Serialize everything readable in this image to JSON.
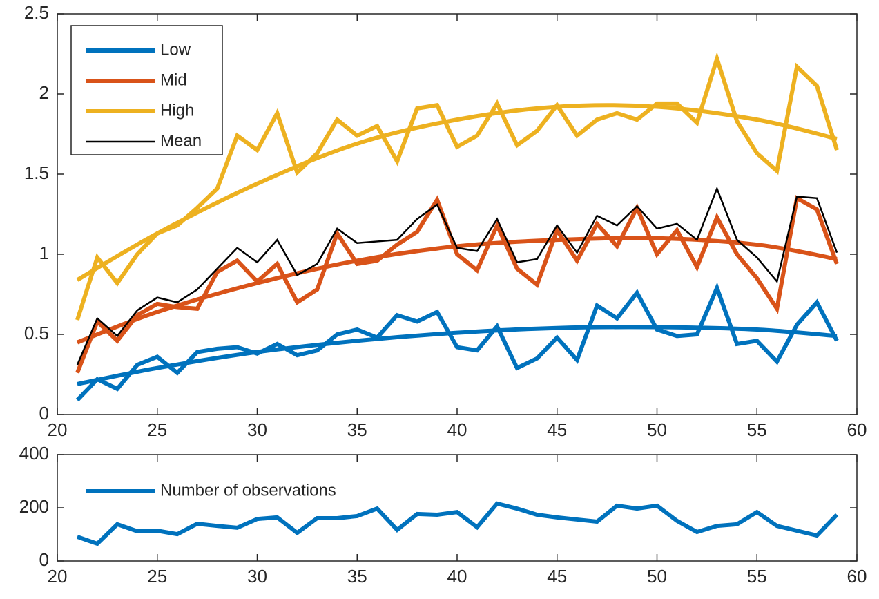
{
  "chart_data": [
    {
      "type": "line",
      "x": [
        21,
        22,
        23,
        24,
        25,
        26,
        27,
        28,
        29,
        30,
        31,
        32,
        33,
        34,
        35,
        36,
        37,
        38,
        39,
        40,
        41,
        42,
        43,
        44,
        45,
        46,
        47,
        48,
        49,
        50,
        51,
        52,
        53,
        54,
        55,
        56,
        57,
        58,
        59
      ],
      "series": [
        {
          "name": "Low",
          "color": "#0072BD",
          "width": 6,
          "values": [
            0.09,
            0.22,
            0.16,
            0.31,
            0.36,
            0.26,
            0.39,
            0.41,
            0.42,
            0.38,
            0.44,
            0.37,
            0.4,
            0.5,
            0.53,
            0.48,
            0.62,
            0.58,
            0.64,
            0.42,
            0.4,
            0.55,
            0.29,
            0.35,
            0.48,
            0.34,
            0.68,
            0.6,
            0.76,
            0.53,
            0.49,
            0.5,
            0.79,
            0.44,
            0.46,
            0.33,
            0.56,
            0.7,
            0.46
          ],
          "fit_x": [
            21,
            25,
            30,
            35,
            40,
            45,
            50,
            55,
            59
          ],
          "fit_values": [
            0.19,
            0.29,
            0.39,
            0.46,
            0.51,
            0.54,
            0.545,
            0.53,
            0.49
          ]
        },
        {
          "name": "Mid",
          "color": "#D95319",
          "width": 6,
          "values": [
            0.26,
            0.58,
            0.46,
            0.62,
            0.69,
            0.67,
            0.66,
            0.89,
            0.96,
            0.83,
            0.94,
            0.7,
            0.78,
            1.13,
            0.94,
            0.96,
            1.06,
            1.14,
            1.34,
            1.0,
            0.9,
            1.18,
            0.91,
            0.81,
            1.15,
            0.96,
            1.19,
            1.05,
            1.29,
            1.0,
            1.15,
            0.92,
            1.23,
            1.0,
            0.85,
            0.66,
            1.35,
            1.28,
            0.94
          ],
          "fit_x": [
            21,
            25,
            30,
            35,
            40,
            45,
            50,
            55,
            59
          ],
          "fit_values": [
            0.45,
            0.64,
            0.82,
            0.96,
            1.05,
            1.09,
            1.1,
            1.06,
            0.97
          ]
        },
        {
          "name": "High",
          "color": "#EDB120",
          "width": 6,
          "values": [
            0.59,
            0.98,
            0.82,
            1.0,
            1.13,
            1.18,
            1.29,
            1.41,
            1.74,
            1.65,
            1.88,
            1.51,
            1.63,
            1.84,
            1.74,
            1.8,
            1.58,
            1.91,
            1.93,
            1.67,
            1.74,
            1.94,
            1.68,
            1.77,
            1.93,
            1.74,
            1.84,
            1.88,
            1.84,
            1.94,
            1.94,
            1.82,
            2.22,
            1.83,
            1.63,
            1.52,
            2.17,
            2.05,
            1.65
          ],
          "fit_x": [
            21,
            25,
            30,
            35,
            40,
            45,
            50,
            55,
            59
          ],
          "fit_values": [
            0.84,
            1.13,
            1.44,
            1.69,
            1.84,
            1.92,
            1.92,
            1.84,
            1.72
          ]
        },
        {
          "name": "Mean",
          "color": "#000000",
          "width": 2.5,
          "values": [
            0.31,
            0.6,
            0.49,
            0.65,
            0.73,
            0.7,
            0.78,
            0.91,
            1.04,
            0.95,
            1.09,
            0.87,
            0.94,
            1.16,
            1.07,
            1.08,
            1.09,
            1.22,
            1.31,
            1.04,
            1.02,
            1.22,
            0.95,
            0.97,
            1.18,
            1.01,
            1.24,
            1.18,
            1.3,
            1.16,
            1.19,
            1.09,
            1.41,
            1.09,
            0.98,
            0.83,
            1.36,
            1.35,
            1.01
          ]
        }
      ],
      "xlim": [
        20,
        60
      ],
      "xticks": [
        20,
        25,
        30,
        35,
        40,
        45,
        50,
        55,
        60
      ],
      "ylim": [
        0,
        2.5
      ],
      "yticks": [
        0,
        0.5,
        1,
        1.5,
        2,
        2.5
      ],
      "legend": "top-left",
      "legend_box": true
    },
    {
      "type": "line",
      "x": [
        21,
        22,
        23,
        24,
        25,
        26,
        27,
        28,
        29,
        30,
        31,
        32,
        33,
        34,
        35,
        36,
        37,
        38,
        39,
        40,
        41,
        42,
        43,
        44,
        45,
        46,
        47,
        48,
        49,
        50,
        51,
        52,
        53,
        54,
        55,
        56,
        57,
        58,
        59
      ],
      "series": [
        {
          "name": "Number of observations",
          "color": "#0072BD",
          "width": 6,
          "values": [
            91,
            65,
            138,
            112,
            114,
            101,
            140,
            132,
            125,
            158,
            164,
            106,
            161,
            161,
            169,
            197,
            117,
            177,
            174,
            184,
            127,
            216,
            197,
            174,
            164,
            156,
            148,
            208,
            197,
            208,
            151,
            109,
            132,
            138,
            184,
            132,
            114,
            96,
            174
          ]
        }
      ],
      "xlim": [
        20,
        60
      ],
      "xticks": [
        20,
        25,
        30,
        35,
        40,
        45,
        50,
        55,
        60
      ],
      "ylim": [
        0,
        400
      ],
      "yticks": [
        0,
        200,
        400
      ],
      "legend": "top-left",
      "legend_box": false
    }
  ]
}
